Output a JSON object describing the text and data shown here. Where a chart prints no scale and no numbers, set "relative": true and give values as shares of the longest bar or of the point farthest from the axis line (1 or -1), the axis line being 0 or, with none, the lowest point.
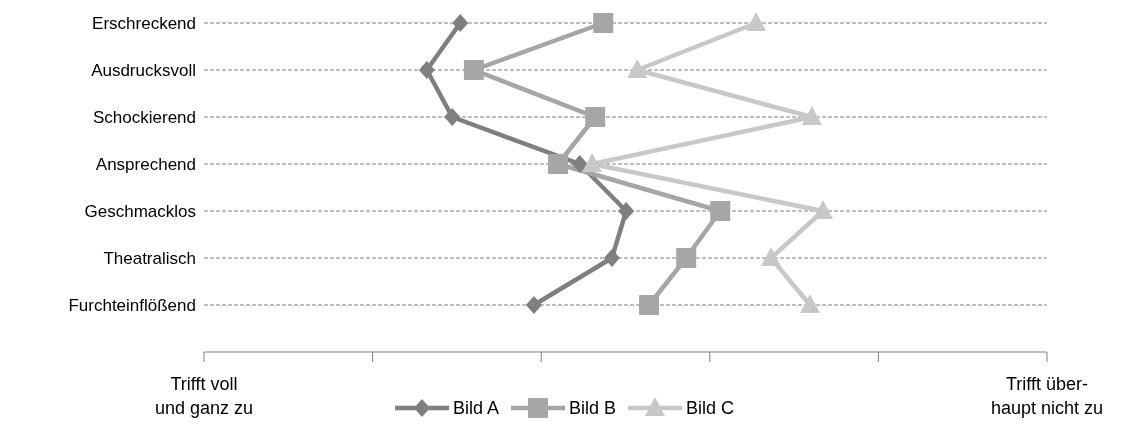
{
  "chart_data": {
    "type": "line",
    "orientation": "horizontal",
    "relative": true,
    "categories": [
      "Erschreckend",
      "Ausdrucksvoll",
      "Schockierend",
      "Ansprechend",
      "Geschmacklos",
      "Theatralisch",
      "Furchteinflößend"
    ],
    "series": [
      {
        "name": "Bild A",
        "color": "#7f7f7f",
        "marker": "diamond",
        "values": [
          0.414,
          0.36,
          0.401,
          0.607,
          0.682,
          0.659,
          0.533
        ]
      },
      {
        "name": "Bild B",
        "color": "#a6a6a6",
        "marker": "square",
        "values": [
          0.645,
          0.436,
          0.632,
          0.572,
          0.834,
          0.779,
          0.719
        ]
      },
      {
        "name": "Bild C",
        "color": "#c8c8c8",
        "marker": "triangle",
        "values": [
          0.892,
          0.7,
          0.982,
          0.627,
          1.0,
          0.916,
          0.979
        ]
      }
    ],
    "grid": "y",
    "legend": "bottom",
    "line_style": "solid",
    "annotations": [
      "Trifft voll\nund ganz zu",
      "Trifft über-\nhaupt nicht zu"
    ]
  }
}
